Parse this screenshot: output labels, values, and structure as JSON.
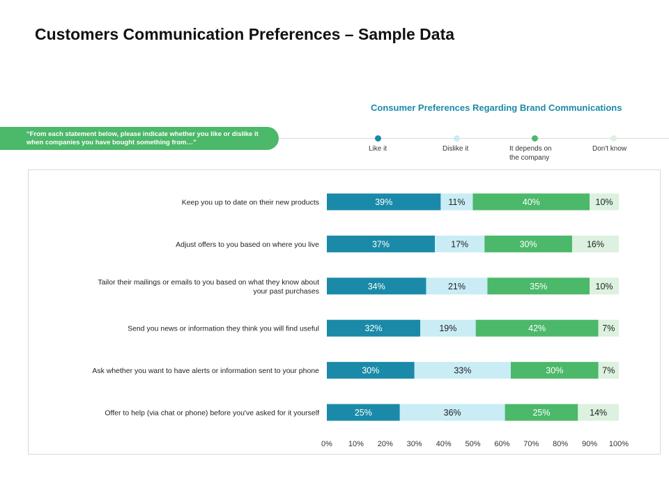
{
  "title": "Customers Communication Preferences – Sample Data",
  "prompt": "“From each statement below, please indicate whether you like or dislike it when companies you have bought something from…”",
  "chart_data": {
    "type": "bar",
    "orientation": "horizontal",
    "stacked": true,
    "title": "Consumer Preferences Regarding Brand Communications",
    "categories": [
      "Keep you up to date on their new products",
      "Adjust offers to you based on where you live",
      "Tailor their mailings or emails to you based on what they know about your past purchases",
      "Send you news or information they think you will find useful",
      "Ask whether you want to have alerts or information sent to your phone",
      "Offer to help (via chat or phone) before you've asked for it yourself"
    ],
    "category_lines": [
      [
        "Keep you up to date on their new products"
      ],
      [
        "Adjust offers to you based on where you live"
      ],
      [
        "Tailor their mailings or emails to you based on what they know about",
        "your past purchases"
      ],
      [
        "Send you news or information they think you will find useful"
      ],
      [
        "Ask whether you want to have alerts or information sent to your phone"
      ],
      [
        "Offer to help (via chat or phone) before you've asked for it yourself"
      ]
    ],
    "series": [
      {
        "name": "Like it",
        "color": "#1b8aa8",
        "label_color": "#ffffff",
        "values": [
          39,
          37,
          34,
          32,
          30,
          25
        ]
      },
      {
        "name": "Dislike it",
        "color": "#c9ecf5",
        "label_color": "#222222",
        "values": [
          11,
          17,
          21,
          19,
          33,
          36
        ]
      },
      {
        "name": "It depends on the company",
        "color": "#4cb86a",
        "label_color": "#ffffff",
        "values": [
          40,
          30,
          35,
          42,
          30,
          25
        ]
      },
      {
        "name": "Don't know",
        "color": "#dcf1df",
        "label_color": "#222222",
        "values": [
          10,
          16,
          10,
          7,
          7,
          14
        ]
      }
    ],
    "legend_lines": [
      [
        "Like it"
      ],
      [
        "Dislike  it"
      ],
      [
        "It depends on",
        "the company"
      ],
      [
        "Don't know"
      ]
    ],
    "xlim": [
      0,
      100
    ],
    "xticks": [
      "0%",
      "10%",
      "20%",
      "30%",
      "40%",
      "50%",
      "60%",
      "70%",
      "80%",
      "90%",
      "100%"
    ],
    "value_suffix": "%",
    "legend_position": "top"
  }
}
